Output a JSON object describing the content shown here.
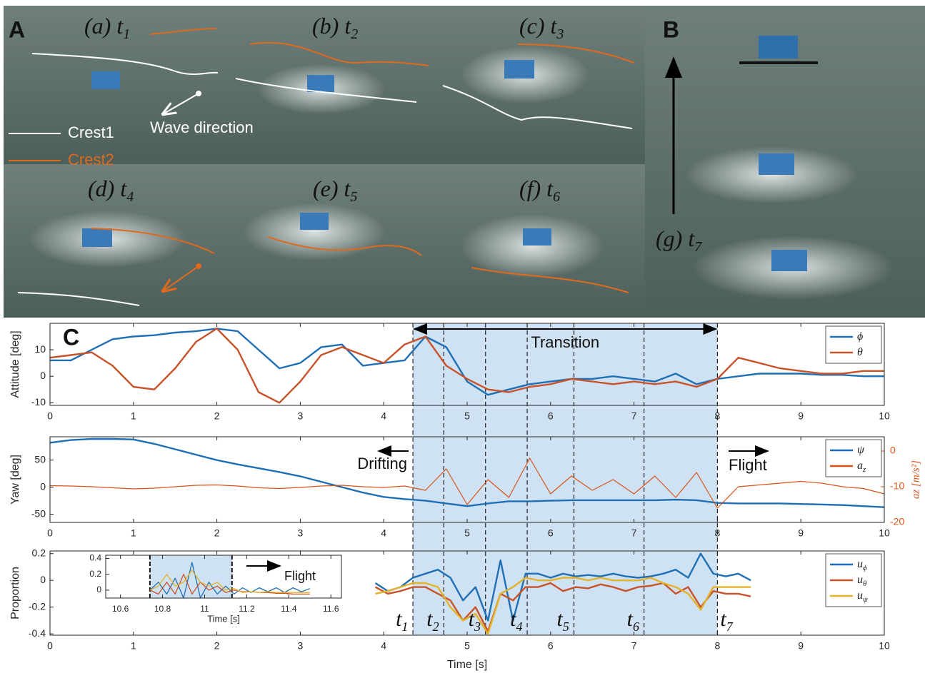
{
  "panel_labels": [
    "A",
    "B",
    "C"
  ],
  "photos": [
    {
      "label": "(a)",
      "var": "t",
      "sub": "1"
    },
    {
      "label": "(b)",
      "var": "t",
      "sub": "2"
    },
    {
      "label": "(c)",
      "var": "t",
      "sub": "3"
    },
    {
      "label": "(d)",
      "var": "t",
      "sub": "4"
    },
    {
      "label": "(e)",
      "var": "t",
      "sub": "5"
    },
    {
      "label": "(f)",
      "var": "t",
      "sub": "6"
    },
    {
      "label": "(g)",
      "var": "t",
      "sub": "7"
    }
  ],
  "crest_legend": [
    "Crest1",
    "Crest2"
  ],
  "wave_label": "Wave direction",
  "chart_data": [
    {
      "type": "line",
      "ylabel": "Attitude [deg]",
      "annotations": [
        "Transition"
      ],
      "x": [
        0,
        0.25,
        0.5,
        0.75,
        1,
        1.25,
        1.5,
        1.75,
        2,
        2.25,
        2.5,
        2.75,
        3,
        3.25,
        3.5,
        3.75,
        4,
        4.25,
        4.5,
        4.75,
        5,
        5.25,
        5.5,
        5.75,
        6,
        6.25,
        6.5,
        6.75,
        7,
        7.25,
        7.5,
        7.75,
        8,
        8.25,
        8.5,
        8.75,
        9,
        9.25,
        9.5,
        9.75,
        10
      ],
      "xlim": [
        0,
        10
      ],
      "xticks": [
        0,
        1,
        2,
        3,
        4,
        5,
        6,
        7,
        8,
        9,
        10
      ],
      "ylim": [
        -11,
        20
      ],
      "yticks": [
        -10,
        0,
        10
      ],
      "shaded_span": [
        4.35,
        8
      ],
      "markers": [
        4.35,
        4.72,
        5.22,
        5.72,
        6.28,
        7.12,
        8
      ],
      "legend": "upper right",
      "series": [
        {
          "name": "ϕ",
          "color": "#1f6fb5",
          "values": [
            6,
            6,
            10,
            14,
            15,
            15.5,
            16.5,
            17,
            18,
            17,
            10,
            3,
            5,
            11,
            12,
            4,
            5,
            6,
            15,
            11,
            -2,
            -7,
            -5,
            -3,
            -2,
            -1,
            -1,
            0,
            -1,
            -2,
            1,
            -3,
            -1,
            0,
            1,
            1,
            1,
            0.5,
            0.5,
            0,
            0
          ]
        },
        {
          "name": "θ",
          "color": "#c8522a",
          "values": [
            7,
            8,
            9,
            4,
            -4,
            -5,
            3,
            13,
            18,
            10,
            -6,
            -10,
            -2,
            8,
            11,
            8,
            5,
            12,
            15,
            4,
            -1,
            -5,
            -6,
            -4,
            -3,
            -1,
            -2,
            -3,
            -2,
            -3,
            -2,
            -4,
            -1,
            7,
            5,
            3,
            2,
            1,
            1,
            2,
            2
          ]
        }
      ]
    },
    {
      "type": "line",
      "ylabel": "Yaw [deg]",
      "y2label": "az [m/s²]",
      "annotations": [
        "Drifting",
        "Flight"
      ],
      "x": [
        0,
        0.25,
        0.5,
        0.75,
        1,
        1.25,
        1.5,
        1.75,
        2,
        2.25,
        2.5,
        2.75,
        3,
        3.25,
        3.5,
        3.75,
        4,
        4.25,
        4.5,
        4.75,
        5,
        5.25,
        5.5,
        5.75,
        6,
        6.25,
        6.5,
        6.75,
        7,
        7.25,
        7.5,
        7.75,
        8,
        8.25,
        8.5,
        8.75,
        9,
        9.25,
        9.5,
        9.75,
        10
      ],
      "xlim": [
        0,
        10
      ],
      "xticks": [
        0,
        1,
        2,
        3,
        4,
        5,
        6,
        7,
        8,
        9,
        10
      ],
      "ylim": [
        -65,
        93
      ],
      "yticks": [
        -50,
        0,
        50
      ],
      "y2lim": [
        -20,
        4
      ],
      "y2ticks": [
        -20,
        -10,
        0
      ],
      "legend": "upper right",
      "series": [
        {
          "name": "ψ",
          "color": "#1f6fb5",
          "values": [
            82,
            87,
            89,
            89,
            88,
            80,
            70,
            60,
            50,
            42,
            35,
            28,
            20,
            10,
            0,
            -10,
            -18,
            -22,
            -25,
            -30,
            -35,
            -30,
            -26,
            -26,
            -25,
            -24,
            -24,
            -24,
            -24,
            -24,
            -23,
            -24,
            -29,
            -30,
            -30,
            -30,
            -31,
            -32,
            -33,
            -35,
            -37
          ]
        },
        {
          "name": "a",
          "sub": "z",
          "color": "#d95319",
          "axis": "y2",
          "values": [
            -9.7,
            -9.8,
            -10,
            -10.3,
            -10.6,
            -10.4,
            -10,
            -9.6,
            -9.5,
            -9.8,
            -10.3,
            -10.5,
            -10.2,
            -9.8,
            -9.6,
            -10,
            -10.2,
            -9.8,
            -11,
            -5,
            -15,
            -8,
            -13,
            -2,
            -12,
            -7,
            -11,
            -8,
            -12,
            -7,
            -13,
            -6,
            -16,
            -10,
            -9.5,
            -9,
            -8.5,
            -9,
            -10,
            -10.5,
            -12
          ]
        }
      ]
    },
    {
      "type": "line",
      "ylabel": "Proportion",
      "xlabel": "Time [s]",
      "marker_labels": [
        {
          "text": "t",
          "sub": "1"
        },
        {
          "text": "t",
          "sub": "2"
        },
        {
          "text": "t",
          "sub": "3"
        },
        {
          "text": "t",
          "sub": "4"
        },
        {
          "text": "t",
          "sub": "5"
        },
        {
          "text": "t",
          "sub": "6"
        },
        {
          "text": "t",
          "sub": "7"
        }
      ],
      "x": [
        3.9,
        4.05,
        4.2,
        4.35,
        4.5,
        4.65,
        4.8,
        4.95,
        5.1,
        5.25,
        5.4,
        5.55,
        5.7,
        5.85,
        6,
        6.15,
        6.3,
        6.45,
        6.6,
        6.75,
        6.9,
        7.05,
        7.2,
        7.35,
        7.5,
        7.65,
        7.8,
        7.95,
        8.1,
        8.25,
        8.4
      ],
      "xlim": [
        0,
        10
      ],
      "xticks": [
        0,
        1,
        2,
        3,
        4,
        5,
        6,
        7,
        8,
        9,
        10
      ],
      "ylim": [
        -0.41,
        0.22
      ],
      "yticks": [
        -0.4,
        -0.2,
        0,
        0.2
      ],
      "legend": "upper right",
      "series": [
        {
          "name": "u",
          "sub": "ϕ",
          "color": "#1f6fb5",
          "values": [
            -0.02,
            -0.08,
            -0.05,
            0.02,
            0.05,
            0.08,
            0.02,
            -0.15,
            -0.05,
            -0.3,
            0.15,
            -0.3,
            0.05,
            0.05,
            0.02,
            0.05,
            0.03,
            0.04,
            0.03,
            0.05,
            0.03,
            0.02,
            0.03,
            0.05,
            0.08,
            0.02,
            0.2,
            0.05,
            0.03,
            0.05,
            0
          ]
        },
        {
          "name": "u",
          "sub": "θ",
          "color": "#c8522a",
          "values": [
            -0.05,
            -0.1,
            -0.08,
            -0.05,
            -0.05,
            -0.1,
            -0.15,
            -0.3,
            -0.2,
            -0.38,
            -0.1,
            -0.15,
            -0.05,
            -0.05,
            -0.02,
            -0.08,
            -0.05,
            -0.06,
            -0.03,
            -0.05,
            -0.08,
            -0.05,
            -0.04,
            -0.02,
            -0.1,
            -0.05,
            -0.2,
            -0.08,
            -0.1,
            -0.1,
            -0.12
          ]
        },
        {
          "name": "u",
          "sub": "ψ",
          "color": "#e3b22b",
          "values": [
            -0.1,
            -0.08,
            -0.05,
            -0.02,
            -0.02,
            -0.05,
            -0.2,
            -0.3,
            -0.25,
            -0.4,
            -0.1,
            -0.05,
            0.02,
            0,
            0,
            0.02,
            0.02,
            0,
            0.02,
            0,
            0,
            0,
            0.02,
            -0.02,
            -0.05,
            -0.1,
            -0.22,
            -0.05,
            -0.05,
            -0.05,
            -0.05
          ]
        }
      ]
    },
    {
      "type": "line",
      "xlabel": "Time [s]",
      "annotations": [
        "Flight"
      ],
      "x": [
        10.74,
        10.78,
        10.82,
        10.86,
        10.9,
        10.94,
        10.98,
        11.02,
        11.06,
        11.1,
        11.14,
        11.18,
        11.22,
        11.26,
        11.3,
        11.34,
        11.38,
        11.42,
        11.46,
        11.5
      ],
      "xlim": [
        10.53,
        11.65
      ],
      "xticks": [
        10.6,
        10.8,
        11,
        11.2,
        11.4,
        11.6
      ],
      "ylim": [
        -0.1,
        0.44
      ],
      "yticks": [
        0,
        0.2,
        0.4
      ],
      "shaded_span": [
        10.74,
        11.13
      ],
      "markers": [
        10.74,
        11.13
      ],
      "series": [
        {
          "color": "#1f6fb5",
          "values": [
            0,
            0.1,
            -0.05,
            0.15,
            -0.1,
            0.35,
            -0.1,
            0.1,
            -0.05,
            0.05,
            -0.05,
            0.03,
            -0.03,
            0.03,
            -0.02,
            0.03,
            -0.03,
            0.03,
            -0.02,
            0.02
          ]
        },
        {
          "color": "#c8522a",
          "values": [
            0,
            -0.05,
            0.1,
            -0.05,
            0.2,
            -0.05,
            0.1,
            0,
            0.05,
            -0.03,
            0,
            -0.02,
            -0.02,
            -0.03,
            -0.03,
            -0.04,
            -0.04,
            -0.05,
            -0.05,
            -0.05
          ]
        },
        {
          "color": "#e3b22b",
          "values": [
            0,
            0.05,
            0.2,
            0.05,
            0.1,
            0.25,
            0.1,
            0.05,
            0.1,
            0,
            0.02,
            -0.03,
            -0.02,
            -0.03,
            -0.02,
            -0.03,
            -0.03,
            -0.03,
            -0.03,
            -0.03
          ]
        }
      ]
    }
  ]
}
